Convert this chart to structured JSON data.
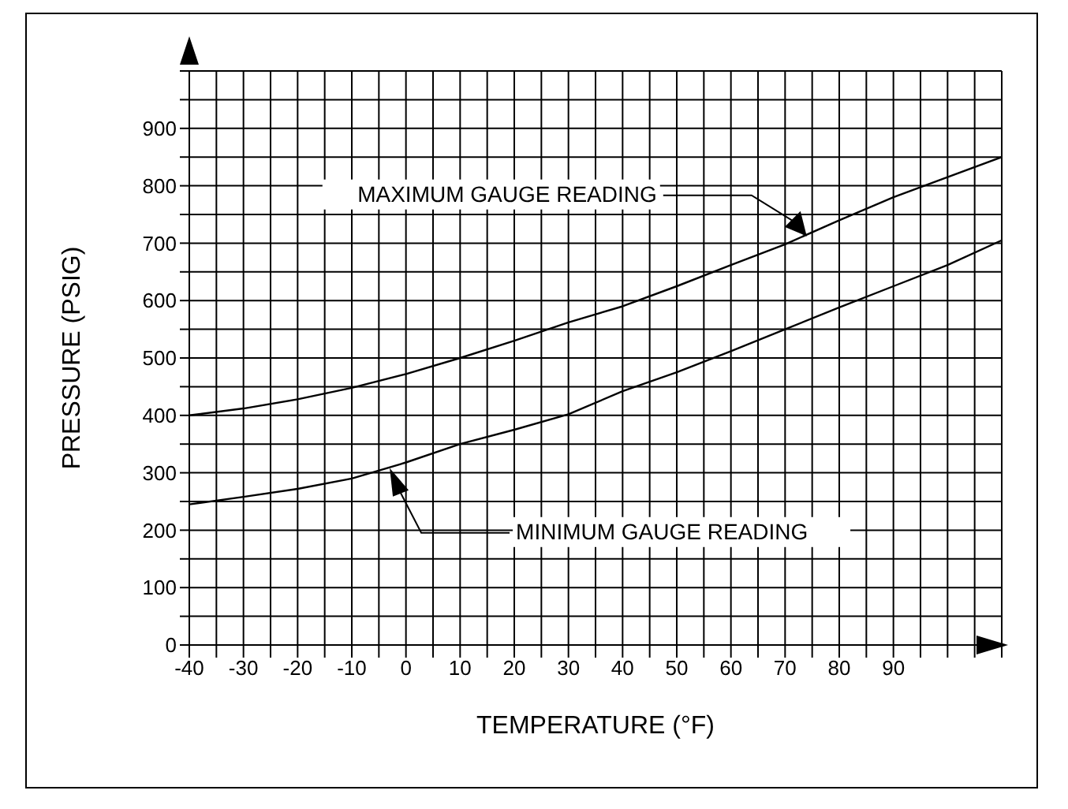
{
  "chart_data": {
    "type": "line",
    "xlabel": "TEMPERATURE (°F)",
    "ylabel": "PRESSURE (PSIG)",
    "x": [
      -40,
      -30,
      -20,
      -10,
      0,
      10,
      20,
      30,
      40,
      50,
      60,
      70,
      80,
      90,
      100,
      110
    ],
    "series": [
      {
        "color": "#000000",
        "values": [
          400,
          412,
          428,
          448,
          472,
          500,
          530,
          562,
          590,
          625,
          662,
          698,
          740,
          780,
          815,
          850
        ]
      },
      {
        "color": "#000000",
        "values": [
          245,
          258,
          272,
          290,
          318,
          350,
          375,
          402,
          442,
          475,
          512,
          550,
          588,
          625,
          662,
          705
        ]
      }
    ],
    "xlim": [
      -40,
      110
    ],
    "xticks": [
      -40,
      {
        "value": -35,
        "label": null
      },
      -30,
      {
        "value": -25,
        "label": null
      },
      -20,
      {
        "value": -15,
        "label": null
      },
      -10,
      {
        "value": -5,
        "label": null
      },
      0,
      {
        "value": 5,
        "label": null
      },
      10,
      {
        "value": 15,
        "label": null
      },
      20,
      {
        "value": 25,
        "label": null
      },
      30,
      {
        "value": 35,
        "label": null
      },
      40,
      {
        "value": 45,
        "label": null
      },
      50,
      {
        "value": 55,
        "label": null
      },
      60,
      {
        "value": 65,
        "label": null
      },
      70,
      {
        "value": 75,
        "label": null
      },
      80,
      {
        "value": 85,
        "label": null
      },
      90,
      {
        "value": 95,
        "label": null
      },
      {
        "value": 100,
        "label": null
      },
      {
        "value": 105,
        "label": null
      },
      {
        "value": 110,
        "label": null
      }
    ],
    "ylim": [
      0,
      1000
    ],
    "yticks": [
      0,
      {
        "value": 50,
        "label": null
      },
      100,
      {
        "value": 150,
        "label": null
      },
      200,
      {
        "value": 250,
        "label": null
      },
      300,
      {
        "value": 350,
        "label": null
      },
      400,
      {
        "value": 450,
        "label": null
      },
      500,
      {
        "value": 550,
        "label": null
      },
      600,
      {
        "value": 650,
        "label": null
      },
      700,
      {
        "value": 750,
        "label": null
      },
      800,
      {
        "value": 850,
        "label": null
      },
      900,
      {
        "value": 950,
        "label": null
      },
      {
        "value": 1000,
        "label": null
      }
    ],
    "grid": true,
    "marker": "none",
    "line_style": "solid",
    "annotations": [
      "MAXIMUM GAUGE READING",
      "MINIMUM GAUGE READING"
    ]
  }
}
